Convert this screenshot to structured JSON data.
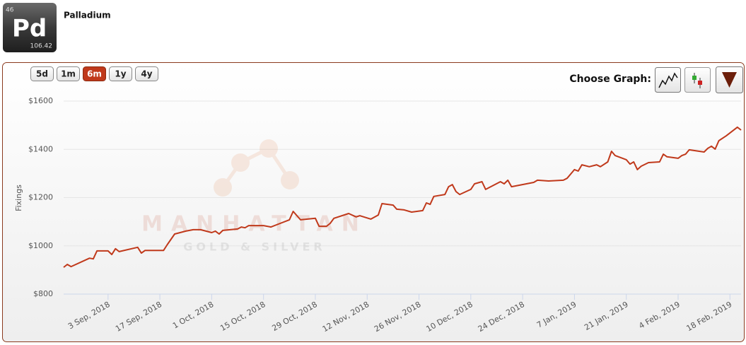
{
  "header": {
    "number": "46",
    "symbol": "Pd",
    "mass": "106.42",
    "title": "Palladium"
  },
  "controls": {
    "ranges": [
      "5d",
      "1m",
      "6m",
      "1y",
      "4y"
    ],
    "active": 2,
    "choose_graph": "Choose Graph:"
  },
  "watermark": {
    "brand": "MANHATTAN",
    "tagline": "GOLD & SILVER"
  },
  "chart_data": {
    "type": "line",
    "ylabel": "Fixings",
    "color": "#c0391b",
    "grid": true,
    "x": [
      "2018-08-22",
      "2018-08-23",
      "2018-08-24",
      "2018-08-29",
      "2018-08-30",
      "2018-08-31",
      "2018-09-03",
      "2018-09-04",
      "2018-09-05",
      "2018-09-06",
      "2018-09-11",
      "2018-09-12",
      "2018-09-13",
      "2018-09-18",
      "2018-09-19",
      "2018-09-21",
      "2018-09-24",
      "2018-09-26",
      "2018-09-28",
      "2018-10-01",
      "2018-10-02",
      "2018-10-03",
      "2018-10-04",
      "2018-10-08",
      "2018-10-09",
      "2018-10-10",
      "2018-10-11",
      "2018-10-15",
      "2018-10-17",
      "2018-10-19",
      "2018-10-22",
      "2018-10-23",
      "2018-10-25",
      "2018-10-29",
      "2018-10-30",
      "2018-11-01",
      "2018-11-02",
      "2018-11-03",
      "2018-11-07",
      "2018-11-09",
      "2018-11-10",
      "2018-11-13",
      "2018-11-15",
      "2018-11-16",
      "2018-11-19",
      "2018-11-20",
      "2018-11-22",
      "2018-11-24",
      "2018-11-27",
      "2018-11-28",
      "2018-11-29",
      "2018-11-30",
      "2018-12-03",
      "2018-12-04",
      "2018-12-05",
      "2018-12-06",
      "2018-12-07",
      "2018-12-10",
      "2018-12-11",
      "2018-12-13",
      "2018-12-14",
      "2018-12-18",
      "2018-12-19",
      "2018-12-20",
      "2018-12-21",
      "2018-12-27",
      "2018-12-28",
      "2018-12-31",
      "2019-01-04",
      "2019-01-05",
      "2019-01-07",
      "2019-01-08",
      "2019-01-09",
      "2019-01-11",
      "2019-01-13",
      "2019-01-14",
      "2019-01-16",
      "2019-01-17",
      "2019-01-18",
      "2019-01-20",
      "2019-01-21",
      "2019-01-22",
      "2019-01-23",
      "2019-01-24",
      "2019-01-25",
      "2019-01-27",
      "2019-01-30",
      "2019-01-31",
      "2019-02-01",
      "2019-02-04",
      "2019-02-05",
      "2019-02-06",
      "2019-02-07",
      "2019-02-11",
      "2019-02-12",
      "2019-02-13",
      "2019-02-14",
      "2019-02-15",
      "2019-02-17",
      "2019-02-20",
      "2019-02-21"
    ],
    "values": [
      911,
      923,
      914,
      949,
      946,
      979,
      979,
      964,
      988,
      976,
      994,
      970,
      981,
      981,
      1005,
      1049,
      1061,
      1067,
      1067,
      1055,
      1061,
      1049,
      1064,
      1070,
      1078,
      1075,
      1084,
      1084,
      1078,
      1090,
      1108,
      1143,
      1108,
      1114,
      1081,
      1081,
      1093,
      1114,
      1134,
      1120,
      1125,
      1111,
      1128,
      1175,
      1169,
      1152,
      1149,
      1140,
      1146,
      1178,
      1172,
      1205,
      1213,
      1245,
      1254,
      1225,
      1213,
      1234,
      1257,
      1266,
      1234,
      1266,
      1257,
      1272,
      1245,
      1263,
      1272,
      1269,
      1272,
      1280,
      1316,
      1310,
      1336,
      1328,
      1336,
      1328,
      1348,
      1392,
      1374,
      1363,
      1357,
      1339,
      1348,
      1316,
      1330,
      1345,
      1348,
      1380,
      1369,
      1363,
      1374,
      1380,
      1398,
      1389,
      1404,
      1413,
      1401,
      1436,
      1456,
      1492,
      1480
    ],
    "xlim": [
      "2018-08-22",
      "2019-02-21"
    ],
    "xticks": [
      {
        "value": "2018-09-03",
        "label": "3 Sep, 2018"
      },
      {
        "value": "2018-09-17",
        "label": "17 Sep, 2018"
      },
      {
        "value": "2018-10-01",
        "label": "1 Oct, 2018"
      },
      {
        "value": "2018-10-15",
        "label": "15 Oct, 2018"
      },
      {
        "value": "2018-10-29",
        "label": "29 Oct, 2018"
      },
      {
        "value": "2018-11-12",
        "label": "12 Nov, 2018"
      },
      {
        "value": "2018-11-26",
        "label": "26 Nov, 2018"
      },
      {
        "value": "2018-12-10",
        "label": "10 Dec, 2018"
      },
      {
        "value": "2018-12-24",
        "label": "24 Dec, 2018"
      },
      {
        "value": "2019-01-07",
        "label": "7 Jan, 2019"
      },
      {
        "value": "2019-01-21",
        "label": "21 Jan, 2019"
      },
      {
        "value": "2019-02-04",
        "label": "4 Feb, 2019"
      },
      {
        "value": "2019-02-18",
        "label": "18 Feb, 2019"
      }
    ],
    "ylim": [
      800,
      1600
    ],
    "yticks": [
      {
        "value": 800,
        "label": "$800"
      },
      {
        "value": 1000,
        "label": "$1000"
      },
      {
        "value": 1200,
        "label": "$1200"
      },
      {
        "value": 1400,
        "label": "$1400"
      },
      {
        "value": 1600,
        "label": "$1600"
      }
    ]
  }
}
